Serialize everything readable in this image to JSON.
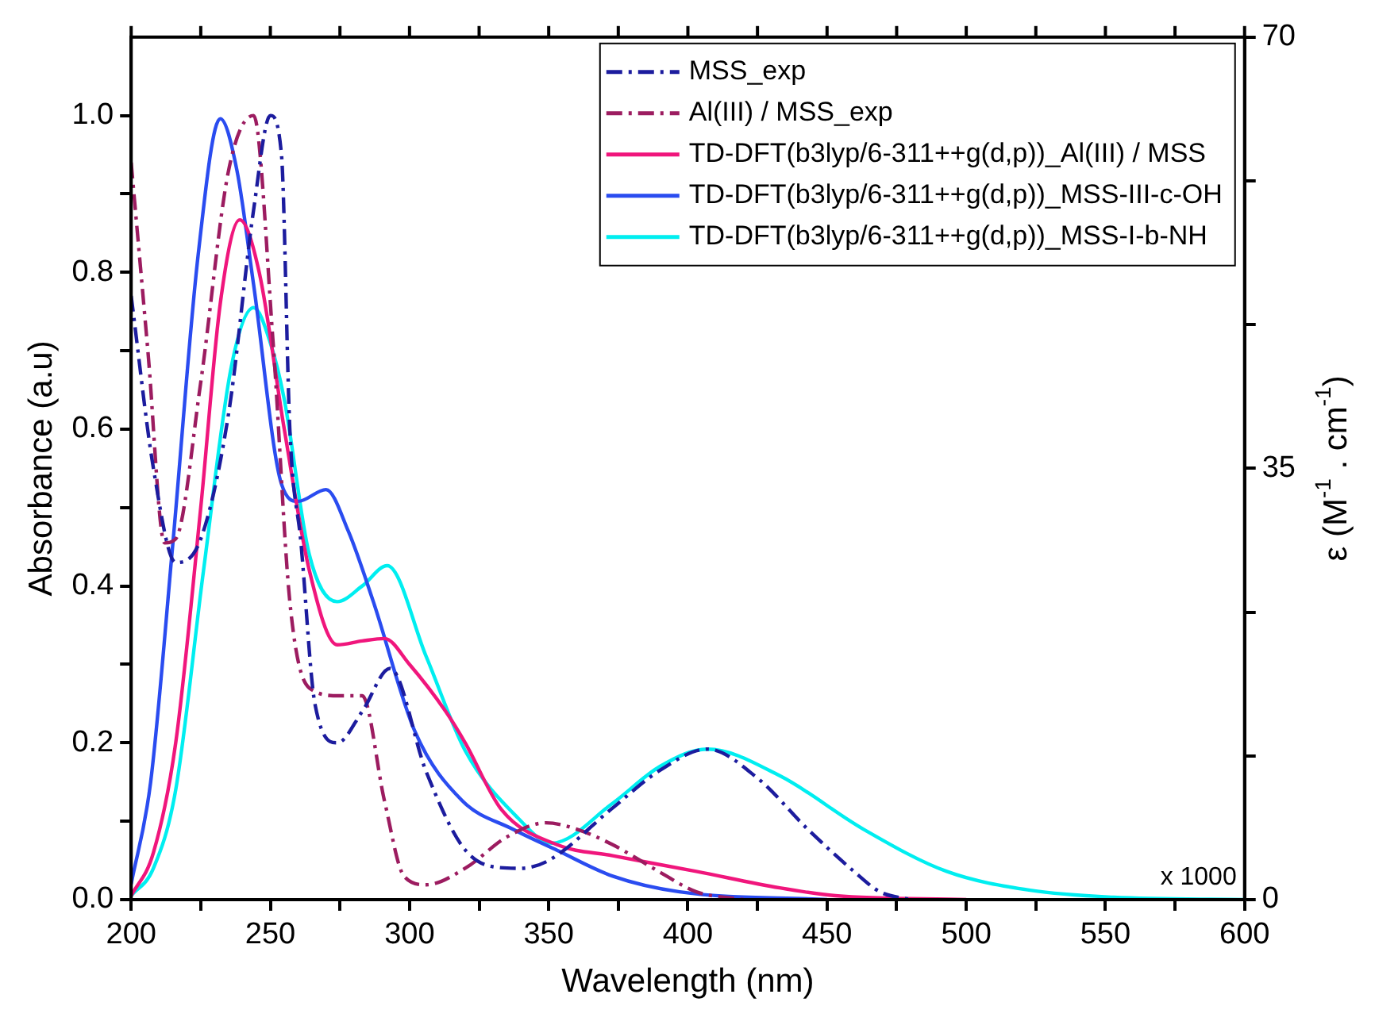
{
  "chart_data": {
    "type": "line",
    "xlabel": "Wavelength (nm)",
    "ylabel": "Absorbance (a.u)",
    "y2label": "ε (M$^{-1}$ . cm$^{-1}$)",
    "annotations": [
      "x 1000"
    ],
    "legend": "top right",
    "marker": "none",
    "xlim": [
      200,
      600
    ],
    "xticks": [
      200,
      {
        "value": 225,
        "label": null
      },
      250,
      {
        "value": 275,
        "label": null
      },
      300,
      {
        "value": 325,
        "label": null
      },
      350,
      {
        "value": 375,
        "label": null
      },
      400,
      {
        "value": 425,
        "label": null
      },
      450,
      {
        "value": 475,
        "label": null
      },
      500,
      {
        "value": 525,
        "label": null
      },
      550,
      {
        "value": 575,
        "label": null
      },
      600
    ],
    "ylim": [
      0,
      1.1
    ],
    "yticks": [
      {
        "value": 0,
        "label": "0.0"
      },
      {
        "value": 0.1,
        "label": null
      },
      {
        "value": 0.2,
        "label": "0.2"
      },
      {
        "value": 0.3,
        "label": null
      },
      {
        "value": 0.4,
        "label": "0.4"
      },
      {
        "value": 0.5,
        "label": null
      },
      {
        "value": 0.6,
        "label": "0.6"
      },
      {
        "value": 0.7,
        "label": null
      },
      {
        "value": 0.8,
        "label": "0.8"
      },
      {
        "value": 0.9,
        "label": null
      },
      {
        "value": 1.0,
        "label": "1.0"
      }
    ],
    "y2lim": [
      0,
      70
    ],
    "y2ticks": [
      0,
      {
        "value": 11.67,
        "label": null
      },
      {
        "value": 23.33,
        "label": null
      },
      35,
      {
        "value": 46.67,
        "label": null
      },
      {
        "value": 58.33,
        "label": null
      },
      70
    ],
    "series": [
      {
        "name": "MSS_exp",
        "color": "#1c1c9e",
        "line_style": "dashed",
        "x": [
          200,
          208,
          216,
          225,
          235,
          244,
          250,
          254,
          257,
          261,
          266,
          274,
          283,
          293,
          306,
          319,
          330,
          340,
          350,
          373,
          390,
          407,
          425,
          443,
          460,
          469,
          480
        ],
        "values": [
          0.77,
          0.55,
          0.43,
          0.46,
          0.62,
          0.88,
          1.0,
          0.95,
          0.6,
          0.455,
          0.25,
          0.2,
          0.24,
          0.295,
          0.163,
          0.068,
          0.042,
          0.04,
          0.05,
          0.117,
          0.165,
          0.192,
          0.155,
          0.09,
          0.035,
          0.01,
          0
        ]
      },
      {
        "name": "Al(III) / MSS_exp",
        "color": "#9c1c60",
        "line_style": "dashed",
        "x": [
          200,
          206,
          212,
          216,
          225,
          235,
          244,
          251,
          257,
          264,
          275,
          283,
          291,
          298,
          306,
          320,
          335,
          349,
          360,
          373,
          390,
          403,
          420
        ],
        "values": [
          0.94,
          0.7,
          0.455,
          0.46,
          0.66,
          0.93,
          1.0,
          0.71,
          0.38,
          0.27,
          0.26,
          0.26,
          0.126,
          0.03,
          0.019,
          0.04,
          0.08,
          0.098,
          0.09,
          0.07,
          0.035,
          0.01,
          0
        ]
      },
      {
        "name": "TD-DFT(b3lyp/6-311++g(d,p))_Al(III) / MSS",
        "color": "#f0167c",
        "line_style": "solid",
        "x": [
          200,
          208,
          216,
          225,
          232,
          239,
          246,
          255,
          264,
          274,
          283,
          291,
          300,
          313,
          320,
          333,
          353,
          373,
          403,
          433,
          453,
          500
        ],
        "values": [
          0.005,
          0.06,
          0.2,
          0.5,
          0.76,
          0.867,
          0.8,
          0.6,
          0.42,
          0.325,
          0.33,
          0.333,
          0.3,
          0.24,
          0.2,
          0.115,
          0.07,
          0.056,
          0.036,
          0.015,
          0.005,
          0
        ]
      },
      {
        "name": "TD-DFT(b3lyp/6-311++g(d,p))_MSS-III-c-OH",
        "color": "#2a4cf0",
        "line_style": "solid",
        "x": [
          200,
          207,
          215,
          224,
          232,
          238,
          244,
          254,
          260,
          270,
          278,
          287,
          302,
          319,
          337,
          353,
          373,
          397,
          450
        ],
        "values": [
          0.02,
          0.15,
          0.455,
          0.82,
          0.996,
          0.93,
          0.784,
          0.53,
          0.508,
          0.523,
          0.47,
          0.38,
          0.214,
          0.126,
          0.09,
          0.063,
          0.03,
          0.01,
          0
        ]
      },
      {
        "name": "TD-DFT(b3lyp/6-311++g(d,p))_MSS-I-b-NH",
        "color": "#00eef0",
        "line_style": "solid",
        "x": [
          200,
          208,
          216,
          226,
          236,
          244,
          250,
          255,
          264,
          274,
          283,
          292,
          306,
          320,
          339,
          351,
          373,
          390,
          407,
          433,
          463,
          493,
          523,
          553,
          600
        ],
        "values": [
          0.005,
          0.04,
          0.14,
          0.42,
          0.68,
          0.755,
          0.71,
          0.638,
          0.44,
          0.38,
          0.4,
          0.426,
          0.31,
          0.19,
          0.104,
          0.072,
          0.123,
          0.17,
          0.192,
          0.158,
          0.09,
          0.036,
          0.012,
          0.003,
          0
        ]
      }
    ]
  }
}
